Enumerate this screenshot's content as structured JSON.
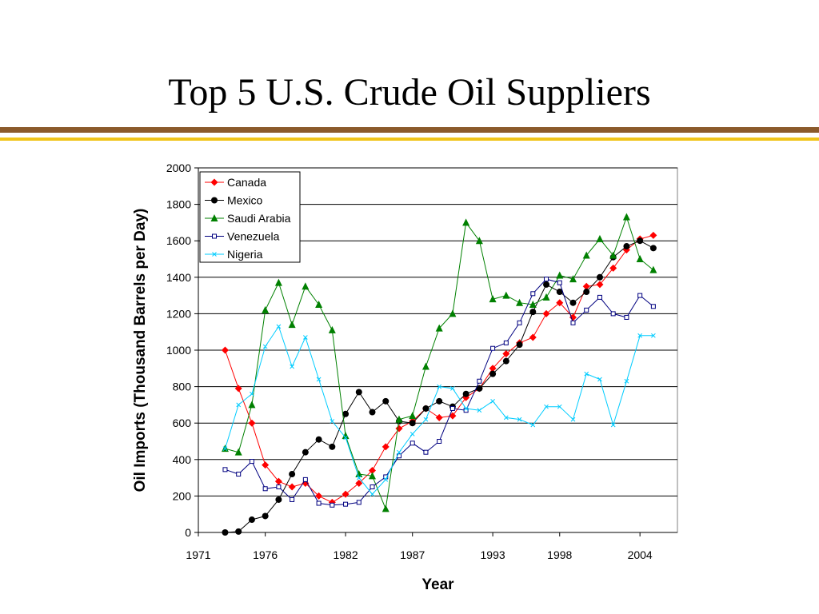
{
  "slide": {
    "title": "Top 5 U.S. Crude Oil Suppliers"
  },
  "chart_data": {
    "type": "line",
    "xlabel": "Year",
    "ylabel": "Oil Imports (Thousand Barrels per Day)",
    "xlim": [
      1971,
      2006.8
    ],
    "ylim": [
      0,
      2000
    ],
    "x_ticks": [
      1971,
      1976,
      1982,
      1987,
      1993,
      1998,
      2004
    ],
    "y_ticks": [
      0,
      200,
      400,
      600,
      800,
      1000,
      1200,
      1400,
      1600,
      1800,
      2000
    ],
    "grid": "horizontal",
    "legend_position": "top-left",
    "x": [
      1973,
      1974,
      1975,
      1976,
      1977,
      1978,
      1979,
      1980,
      1981,
      1982,
      1983,
      1984,
      1985,
      1986,
      1987,
      1988,
      1989,
      1990,
      1991,
      1992,
      1993,
      1994,
      1995,
      1996,
      1997,
      1998,
      1999,
      2000,
      2001,
      2002,
      2003,
      2004,
      2005
    ],
    "series": [
      {
        "name": "Canada",
        "color": "#ff0000",
        "marker": "diamond",
        "values": [
          1000,
          790,
          600,
          370,
          280,
          250,
          270,
          200,
          165,
          210,
          270,
          340,
          470,
          570,
          610,
          680,
          630,
          640,
          740,
          790,
          900,
          980,
          1040,
          1070,
          1200,
          1260,
          1180,
          1350,
          1360,
          1450,
          1550,
          1610,
          1630
        ]
      },
      {
        "name": "Mexico",
        "color": "#000000",
        "marker": "circle",
        "values": [
          0,
          5,
          70,
          90,
          180,
          320,
          440,
          510,
          470,
          650,
          770,
          660,
          720,
          610,
          600,
          680,
          720,
          690,
          760,
          790,
          870,
          940,
          1030,
          1210,
          1360,
          1320,
          1260,
          1320,
          1400,
          1510,
          1570,
          1600,
          1560
        ]
      },
      {
        "name": "Saudi Arabia",
        "color": "#008000",
        "marker": "triangle",
        "values": [
          460,
          440,
          700,
          1220,
          1370,
          1140,
          1350,
          1250,
          1110,
          530,
          320,
          310,
          130,
          620,
          640,
          910,
          1120,
          1200,
          1700,
          1600,
          1280,
          1300,
          1260,
          1250,
          1290,
          1410,
          1390,
          1520,
          1610,
          1520,
          1730,
          1500,
          1440
        ]
      },
      {
        "name": "Venezuela",
        "color": "#000080",
        "marker": "square",
        "values": [
          345,
          320,
          390,
          240,
          250,
          180,
          290,
          160,
          150,
          155,
          165,
          250,
          305,
          420,
          490,
          440,
          500,
          680,
          670,
          830,
          1010,
          1040,
          1150,
          1310,
          1390,
          1370,
          1150,
          1220,
          1290,
          1200,
          1180,
          1300,
          1240
        ]
      },
      {
        "name": "Nigeria",
        "color": "#00ccff",
        "marker": "x",
        "values": [
          460,
          700,
          760,
          1020,
          1130,
          910,
          1070,
          840,
          610,
          520,
          300,
          210,
          290,
          440,
          540,
          620,
          800,
          790,
          680,
          670,
          720,
          630,
          620,
          590,
          690,
          690,
          620,
          870,
          840,
          590,
          830,
          1080,
          1080
        ]
      }
    ]
  }
}
